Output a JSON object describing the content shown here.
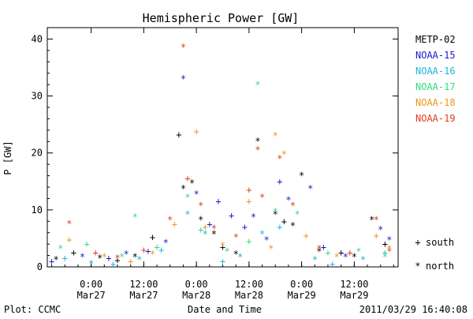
{
  "chart_data": {
    "type": "scatter",
    "title": "Hemispheric Power [GW]",
    "ylabel": "P [GW]",
    "xlabel": "Date and Time",
    "ylim": [
      0,
      42
    ],
    "xlim": [
      "2011-03-26T14:00",
      "2011-03-29T22:00"
    ],
    "y_ticks": [
      0,
      10,
      20,
      30,
      40
    ],
    "x_ticks": [
      {
        "time": "2011-03-27T00:00",
        "line1": "0:00",
        "line2": "Mar27"
      },
      {
        "time": "2011-03-27T12:00",
        "line1": "12:00",
        "line2": "Mar27"
      },
      {
        "time": "2011-03-28T00:00",
        "line1": "0:00",
        "line2": "Mar28"
      },
      {
        "time": "2011-03-28T12:00",
        "line1": "12:00",
        "line2": "Mar28"
      },
      {
        "time": "2011-03-29T00:00",
        "line1": "0:00",
        "line2": "Mar29"
      },
      {
        "time": "2011-03-29T12:00",
        "line1": "12:00",
        "line2": "Mar29"
      }
    ],
    "marker_legend": [
      {
        "symbol": "+",
        "label": "south"
      },
      {
        "symbol": "*",
        "label": "north"
      }
    ],
    "series": [
      {
        "name": "METP-02",
        "color": "#000000",
        "points": [
          {
            "x": "2011-03-26T16:00",
            "y": 1.5,
            "m": "*"
          },
          {
            "x": "2011-03-26T20:00",
            "y": 2.5,
            "m": "+"
          },
          {
            "x": "2011-03-27T02:00",
            "y": 1.8,
            "m": "*"
          },
          {
            "x": "2011-03-27T06:00",
            "y": 1.2,
            "m": "+"
          },
          {
            "x": "2011-03-27T10:00",
            "y": 2.0,
            "m": "*"
          },
          {
            "x": "2011-03-27T14:00",
            "y": 5.2,
            "m": "+"
          },
          {
            "x": "2011-03-27T20:00",
            "y": 23.2,
            "m": "+"
          },
          {
            "x": "2011-03-27T21:00",
            "y": 14.0,
            "m": "*"
          },
          {
            "x": "2011-03-27T23:00",
            "y": 15.0,
            "m": "*"
          },
          {
            "x": "2011-03-28T01:00",
            "y": 8.5,
            "m": "*"
          },
          {
            "x": "2011-03-28T04:00",
            "y": 6.0,
            "m": "*"
          },
          {
            "x": "2011-03-28T06:00",
            "y": 3.5,
            "m": "+"
          },
          {
            "x": "2011-03-28T09:00",
            "y": 2.5,
            "m": "*"
          },
          {
            "x": "2011-03-28T14:00",
            "y": 22.3,
            "m": "*"
          },
          {
            "x": "2011-03-28T18:00",
            "y": 9.5,
            "m": "*"
          },
          {
            "x": "2011-03-28T20:00",
            "y": 8.0,
            "m": "+"
          },
          {
            "x": "2011-03-28T22:00",
            "y": 7.5,
            "m": "*"
          },
          {
            "x": "2011-03-29T00:00",
            "y": 16.3,
            "m": "*"
          },
          {
            "x": "2011-03-29T04:00",
            "y": 3.0,
            "m": "*"
          },
          {
            "x": "2011-03-29T09:00",
            "y": 2.5,
            "m": "+"
          },
          {
            "x": "2011-03-29T12:00",
            "y": 2.0,
            "m": "*"
          },
          {
            "x": "2011-03-29T16:00",
            "y": 8.5,
            "m": "*"
          },
          {
            "x": "2011-03-29T19:00",
            "y": 4.0,
            "m": "+"
          }
        ]
      },
      {
        "name": "NOAA-15",
        "color": "#1a1acc",
        "points": [
          {
            "x": "2011-03-26T15:00",
            "y": 1.0,
            "m": "+"
          },
          {
            "x": "2011-03-26T22:00",
            "y": 2.0,
            "m": "*"
          },
          {
            "x": "2011-03-27T04:00",
            "y": 1.5,
            "m": "+"
          },
          {
            "x": "2011-03-27T08:00",
            "y": 2.5,
            "m": "*"
          },
          {
            "x": "2011-03-27T13:00",
            "y": 2.8,
            "m": "+"
          },
          {
            "x": "2011-03-27T17:00",
            "y": 4.5,
            "m": "*"
          },
          {
            "x": "2011-03-27T21:00",
            "y": 33.3,
            "m": "*"
          },
          {
            "x": "2011-03-28T00:00",
            "y": 13.0,
            "m": "*"
          },
          {
            "x": "2011-03-28T03:00",
            "y": 7.5,
            "m": "+"
          },
          {
            "x": "2011-03-28T05:00",
            "y": 11.5,
            "m": "+"
          },
          {
            "x": "2011-03-28T08:00",
            "y": 9.0,
            "m": "+"
          },
          {
            "x": "2011-03-28T11:00",
            "y": 7.0,
            "m": "+"
          },
          {
            "x": "2011-03-28T13:00",
            "y": 9.0,
            "m": "*"
          },
          {
            "x": "2011-03-28T16:00",
            "y": 5.0,
            "m": "*"
          },
          {
            "x": "2011-03-28T19:00",
            "y": 15.0,
            "m": "+"
          },
          {
            "x": "2011-03-28T21:00",
            "y": 12.0,
            "m": "*"
          },
          {
            "x": "2011-03-29T02:00",
            "y": 14.0,
            "m": "*"
          },
          {
            "x": "2011-03-29T05:00",
            "y": 3.5,
            "m": "+"
          },
          {
            "x": "2011-03-29T10:00",
            "y": 2.0,
            "m": "*"
          },
          {
            "x": "2011-03-29T18:00",
            "y": 6.8,
            "m": "*"
          },
          {
            "x": "2011-03-29T20:00",
            "y": 5.0,
            "m": "*"
          }
        ]
      },
      {
        "name": "NOAA-16",
        "color": "#1ab8d8",
        "points": [
          {
            "x": "2011-03-26T18:00",
            "y": 1.5,
            "m": "+"
          },
          {
            "x": "2011-03-27T00:00",
            "y": 0.8,
            "m": "*"
          },
          {
            "x": "2011-03-27T05:00",
            "y": 0.5,
            "m": "+"
          },
          {
            "x": "2011-03-27T11:00",
            "y": 1.5,
            "m": "*"
          },
          {
            "x": "2011-03-27T16:00",
            "y": 3.0,
            "m": "+"
          },
          {
            "x": "2011-03-27T22:00",
            "y": 9.5,
            "m": "*"
          },
          {
            "x": "2011-03-28T02:00",
            "y": 6.0,
            "m": "*"
          },
          {
            "x": "2011-03-28T06:00",
            "y": 1.0,
            "m": "+"
          },
          {
            "x": "2011-03-28T10:00",
            "y": 2.0,
            "m": "*"
          },
          {
            "x": "2011-03-28T15:00",
            "y": 6.0,
            "m": "*"
          },
          {
            "x": "2011-03-28T19:00",
            "y": 7.0,
            "m": "+"
          },
          {
            "x": "2011-03-29T03:00",
            "y": 1.5,
            "m": "*"
          },
          {
            "x": "2011-03-29T07:00",
            "y": 0.5,
            "m": "+"
          },
          {
            "x": "2011-03-29T14:00",
            "y": 1.5,
            "m": "*"
          },
          {
            "x": "2011-03-29T19:00",
            "y": 2.5,
            "m": "+"
          }
        ]
      },
      {
        "name": "NOAA-17",
        "color": "#33dd77",
        "points": [
          {
            "x": "2011-03-26T17:00",
            "y": 3.5,
            "m": "*"
          },
          {
            "x": "2011-03-26T23:00",
            "y": 4.0,
            "m": "+"
          },
          {
            "x": "2011-03-27T07:00",
            "y": 2.0,
            "m": "*"
          },
          {
            "x": "2011-03-27T10:00",
            "y": 9.0,
            "m": "*"
          },
          {
            "x": "2011-03-27T15:00",
            "y": 3.5,
            "m": "+"
          },
          {
            "x": "2011-03-27T22:00",
            "y": 12.5,
            "m": "*"
          },
          {
            "x": "2011-03-28T01:00",
            "y": 6.5,
            "m": "+"
          },
          {
            "x": "2011-03-28T07:00",
            "y": 3.0,
            "m": "*"
          },
          {
            "x": "2011-03-28T12:00",
            "y": 4.5,
            "m": "+"
          },
          {
            "x": "2011-03-28T14:00",
            "y": 32.2,
            "m": "*"
          },
          {
            "x": "2011-03-28T18:00",
            "y": 10.0,
            "m": "*"
          },
          {
            "x": "2011-03-28T23:00",
            "y": 9.5,
            "m": "*"
          },
          {
            "x": "2011-03-29T06:00",
            "y": 2.5,
            "m": "+"
          },
          {
            "x": "2011-03-29T13:00",
            "y": 3.0,
            "m": "*"
          },
          {
            "x": "2011-03-29T19:00",
            "y": 2.0,
            "m": "*"
          }
        ]
      },
      {
        "name": "NOAA-18",
        "color": "#f0961a",
        "points": [
          {
            "x": "2011-03-26T19:00",
            "y": 4.8,
            "m": "+"
          },
          {
            "x": "2011-03-27T03:00",
            "y": 2.0,
            "m": "*"
          },
          {
            "x": "2011-03-27T09:00",
            "y": 1.0,
            "m": "+"
          },
          {
            "x": "2011-03-27T14:00",
            "y": 2.5,
            "m": "*"
          },
          {
            "x": "2011-03-27T19:00",
            "y": 7.5,
            "m": "+"
          },
          {
            "x": "2011-03-28T00:00",
            "y": 23.8,
            "m": "+"
          },
          {
            "x": "2011-03-28T02:00",
            "y": 7.0,
            "m": "+"
          },
          {
            "x": "2011-03-28T06:00",
            "y": 4.0,
            "m": "*"
          },
          {
            "x": "2011-03-28T12:00",
            "y": 11.5,
            "m": "+"
          },
          {
            "x": "2011-03-28T17:00",
            "y": 3.5,
            "m": "*"
          },
          {
            "x": "2011-03-28T18:00",
            "y": 23.3,
            "m": "*"
          },
          {
            "x": "2011-03-28T20:00",
            "y": 20.0,
            "m": "*"
          },
          {
            "x": "2011-03-29T01:00",
            "y": 5.5,
            "m": "+"
          },
          {
            "x": "2011-03-29T08:00",
            "y": 2.0,
            "m": "*"
          },
          {
            "x": "2011-03-29T17:00",
            "y": 5.5,
            "m": "+"
          },
          {
            "x": "2011-03-29T20:00",
            "y": 3.5,
            "m": "*"
          }
        ]
      },
      {
        "name": "NOAA-19",
        "color": "#e03c1e",
        "points": [
          {
            "x": "2011-03-26T19:00",
            "y": 7.8,
            "m": "*"
          },
          {
            "x": "2011-03-27T01:00",
            "y": 2.5,
            "m": "+"
          },
          {
            "x": "2011-03-27T06:00",
            "y": 1.8,
            "m": "*"
          },
          {
            "x": "2011-03-27T12:00",
            "y": 3.0,
            "m": "+"
          },
          {
            "x": "2011-03-27T18:00",
            "y": 8.5,
            "m": "*"
          },
          {
            "x": "2011-03-27T21:00",
            "y": 38.8,
            "m": "*"
          },
          {
            "x": "2011-03-27T22:00",
            "y": 15.5,
            "m": "+"
          },
          {
            "x": "2011-03-28T01:00",
            "y": 11.0,
            "m": "*"
          },
          {
            "x": "2011-03-28T04:00",
            "y": 7.0,
            "m": "*"
          },
          {
            "x": "2011-03-28T09:00",
            "y": 5.5,
            "m": "*"
          },
          {
            "x": "2011-03-28T12:00",
            "y": 13.5,
            "m": "+"
          },
          {
            "x": "2011-03-28T14:00",
            "y": 20.8,
            "m": "*"
          },
          {
            "x": "2011-03-28T15:00",
            "y": 12.5,
            "m": "*"
          },
          {
            "x": "2011-03-28T19:00",
            "y": 19.3,
            "m": "*"
          },
          {
            "x": "2011-03-28T22:00",
            "y": 11.0,
            "m": "*"
          },
          {
            "x": "2011-03-29T04:00",
            "y": 3.5,
            "m": "*"
          },
          {
            "x": "2011-03-29T11:00",
            "y": 2.5,
            "m": "+"
          },
          {
            "x": "2011-03-29T17:00",
            "y": 8.5,
            "m": "*"
          },
          {
            "x": "2011-03-29T20:00",
            "y": 3.0,
            "m": "*"
          }
        ]
      }
    ],
    "grid": false,
    "legend_position": "right"
  },
  "footer": {
    "source": "Plot: CCMC",
    "timestamp": "2011/03/29 16:40:08"
  }
}
